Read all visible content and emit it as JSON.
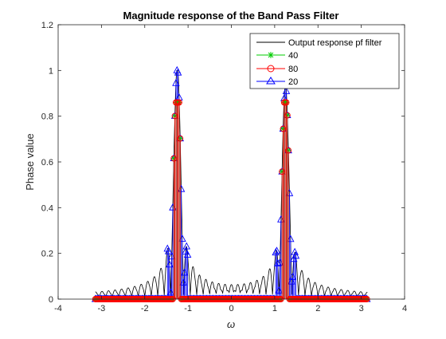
{
  "chart_data": {
    "type": "line",
    "title": "Magnitude response of the Band Pass Filter",
    "xlabel": "ω",
    "ylabel": "Phase value",
    "xlim": [
      -4,
      4
    ],
    "ylim": [
      0,
      1.2
    ],
    "xticks": [
      "-4",
      "-3",
      "-2",
      "-1",
      "0",
      "1",
      "2",
      "3",
      "4"
    ],
    "yticks": [
      "0",
      "0.2",
      "0.4",
      "0.6",
      "0.8",
      "1",
      "1.2"
    ],
    "legend_position": "top-right",
    "grid": false,
    "x_range_data": [
      -3.1416,
      3.1416
    ],
    "series": [
      {
        "name": "Output response pf filter",
        "style": "line",
        "color": "#000000",
        "description": "sinc-like magnitude response with main lobes at ω = ±1.25",
        "peaks": [
          {
            "center": -1.25,
            "height": 1.0
          },
          {
            "center": 1.25,
            "height": 0.92
          }
        ]
      },
      {
        "name": "40",
        "style": "stem",
        "marker": "asterisk",
        "color": "#00cc00",
        "passband": [
          [
            -1.33,
            -1.17
          ],
          [
            1.17,
            1.33
          ]
        ],
        "max_value": 0.86
      },
      {
        "name": "80",
        "style": "stem",
        "marker": "circle",
        "color": "#ff0000",
        "passband": [
          [
            -1.33,
            -1.17
          ],
          [
            1.17,
            1.33
          ]
        ],
        "max_value": 0.86
      },
      {
        "name": "20",
        "style": "stem",
        "marker": "triangle",
        "color": "#0000ff",
        "passband": [
          [
            -1.5,
            -1.0
          ],
          [
            1.0,
            1.5
          ]
        ],
        "max_value": 1.0
      }
    ]
  }
}
